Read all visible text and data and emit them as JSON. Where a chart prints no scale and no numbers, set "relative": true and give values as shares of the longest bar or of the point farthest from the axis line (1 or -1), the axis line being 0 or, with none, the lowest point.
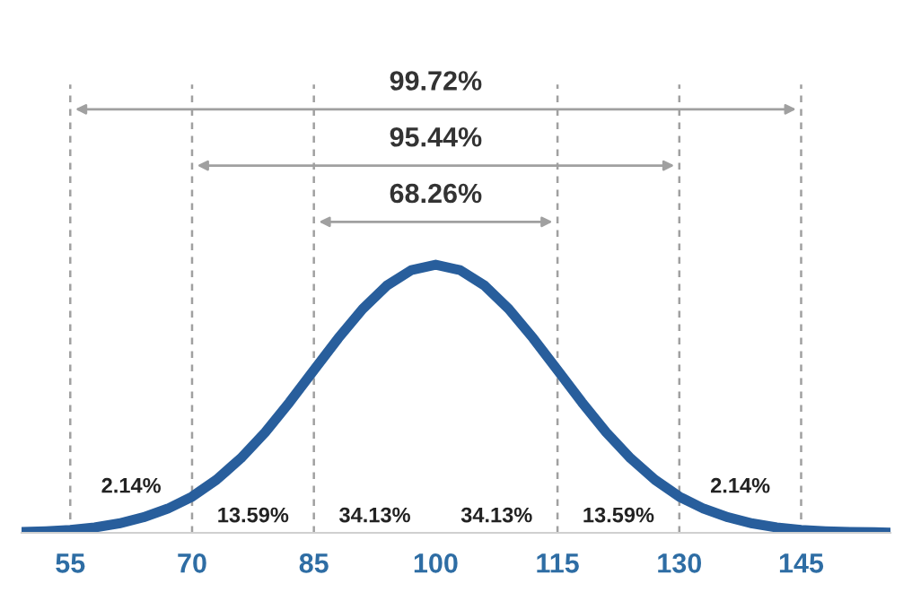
{
  "chart_data": {
    "type": "line",
    "relative": true,
    "x": [
      49,
      52,
      55,
      58,
      61,
      64,
      67,
      70,
      73,
      76,
      79,
      82,
      85,
      88,
      91,
      94,
      97,
      100,
      103,
      106,
      109,
      112,
      115,
      118,
      121,
      124,
      127,
      130,
      133,
      136,
      139,
      142,
      145,
      148,
      151,
      154,
      156
    ],
    "series": [
      {
        "color": "#285e9c",
        "values": [
          0.003,
          0.006,
          0.011,
          0.02,
          0.035,
          0.058,
          0.09,
          0.135,
          0.198,
          0.278,
          0.375,
          0.487,
          0.607,
          0.726,
          0.835,
          0.923,
          0.98,
          1,
          0.98,
          0.923,
          0.835,
          0.726,
          0.607,
          0.487,
          0.375,
          0.278,
          0.198,
          0.135,
          0.09,
          0.058,
          0.035,
          0.02,
          0.011,
          0.006,
          0.003,
          0.002,
          0.001
        ]
      }
    ],
    "xlim": [
      49,
      156
    ],
    "xticks": [
      55,
      70,
      85,
      100,
      115,
      130,
      145
    ],
    "ref_lines": [
      {
        "axis": "x",
        "value": 55,
        "color": "#a0a0a0",
        "line_style": "dashed"
      },
      {
        "axis": "x",
        "value": 70,
        "color": "#a0a0a0",
        "line_style": "dashed"
      },
      {
        "axis": "x",
        "value": 85,
        "color": "#a0a0a0",
        "line_style": "dashed"
      },
      {
        "axis": "x",
        "value": 115,
        "color": "#a0a0a0",
        "line_style": "dashed"
      },
      {
        "axis": "x",
        "value": 130,
        "color": "#a0a0a0",
        "line_style": "dashed"
      },
      {
        "axis": "x",
        "value": 145,
        "color": "#a0a0a0",
        "line_style": "dashed"
      }
    ],
    "annotations": [
      "99.72%",
      "95.44%",
      "68.26%",
      "2.14%",
      "13.59%",
      "34.13%",
      "34.13%",
      "13.59%",
      "2.14%"
    ],
    "grid": false,
    "legend": false,
    "marker": "none",
    "line_style": "solid"
  }
}
